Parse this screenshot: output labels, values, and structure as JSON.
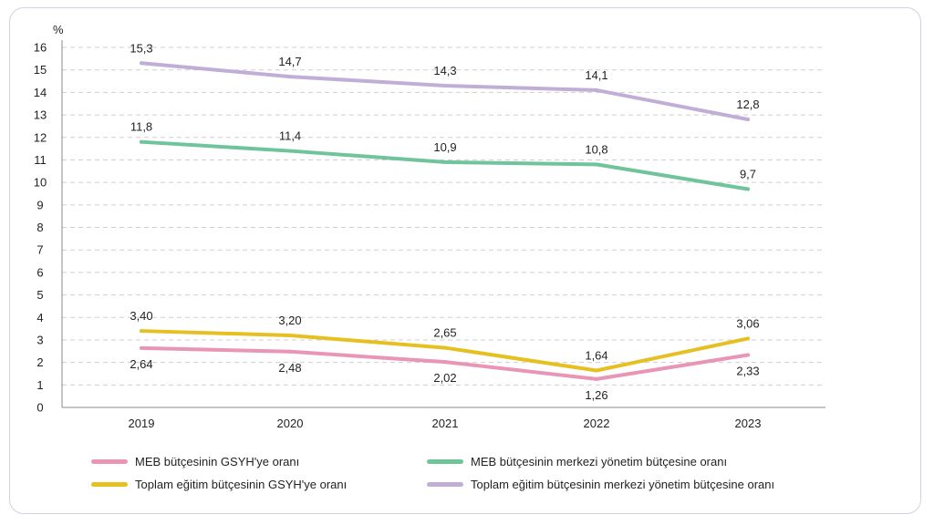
{
  "chart_data": {
    "type": "line",
    "ylabel": "%",
    "ylim": [
      0,
      16
    ],
    "yticks": [
      "0",
      "1",
      "2",
      "3",
      "4",
      "5",
      "6",
      "7",
      "8",
      "9",
      "10",
      "11",
      "12",
      "13",
      "14",
      "15",
      "16"
    ],
    "categories": [
      "2019",
      "2020",
      "2021",
      "2022",
      "2023"
    ],
    "grid": true,
    "legend_position": "bottom",
    "series": [
      {
        "name": "MEB bütçesinin GSYH'ye oranı",
        "color": "#e895b6",
        "values": [
          2.64,
          2.48,
          2.02,
          1.26,
          2.33
        ],
        "labels": [
          "2,64",
          "2,48",
          "2,02",
          "1,26",
          "2,33"
        ],
        "label_side": "below"
      },
      {
        "name": "Toplam eğitim bütçesinin GSYH'ye oranı",
        "color": "#e6c020",
        "values": [
          3.4,
          3.2,
          2.65,
          1.64,
          3.06
        ],
        "labels": [
          "3,40",
          "3,20",
          "2,65",
          "1,64",
          "3,06"
        ],
        "label_side": "above"
      },
      {
        "name": "MEB bütçesinin merkezi yönetim bütçesine oranı",
        "color": "#6fc49a",
        "values": [
          11.8,
          11.4,
          10.9,
          10.8,
          9.7
        ],
        "labels": [
          "11,8",
          "11,4",
          "10,9",
          "10,8",
          "9,7"
        ],
        "label_side": "above"
      },
      {
        "name": "Toplam eğitim bütçesinin merkezi yönetim bütçesine oranı",
        "color": "#c0aed6",
        "values": [
          15.3,
          14.7,
          14.3,
          14.1,
          12.8
        ],
        "labels": [
          "15,3",
          "14,7",
          "14,3",
          "14,1",
          "12,8"
        ],
        "label_side": "above"
      }
    ]
  }
}
